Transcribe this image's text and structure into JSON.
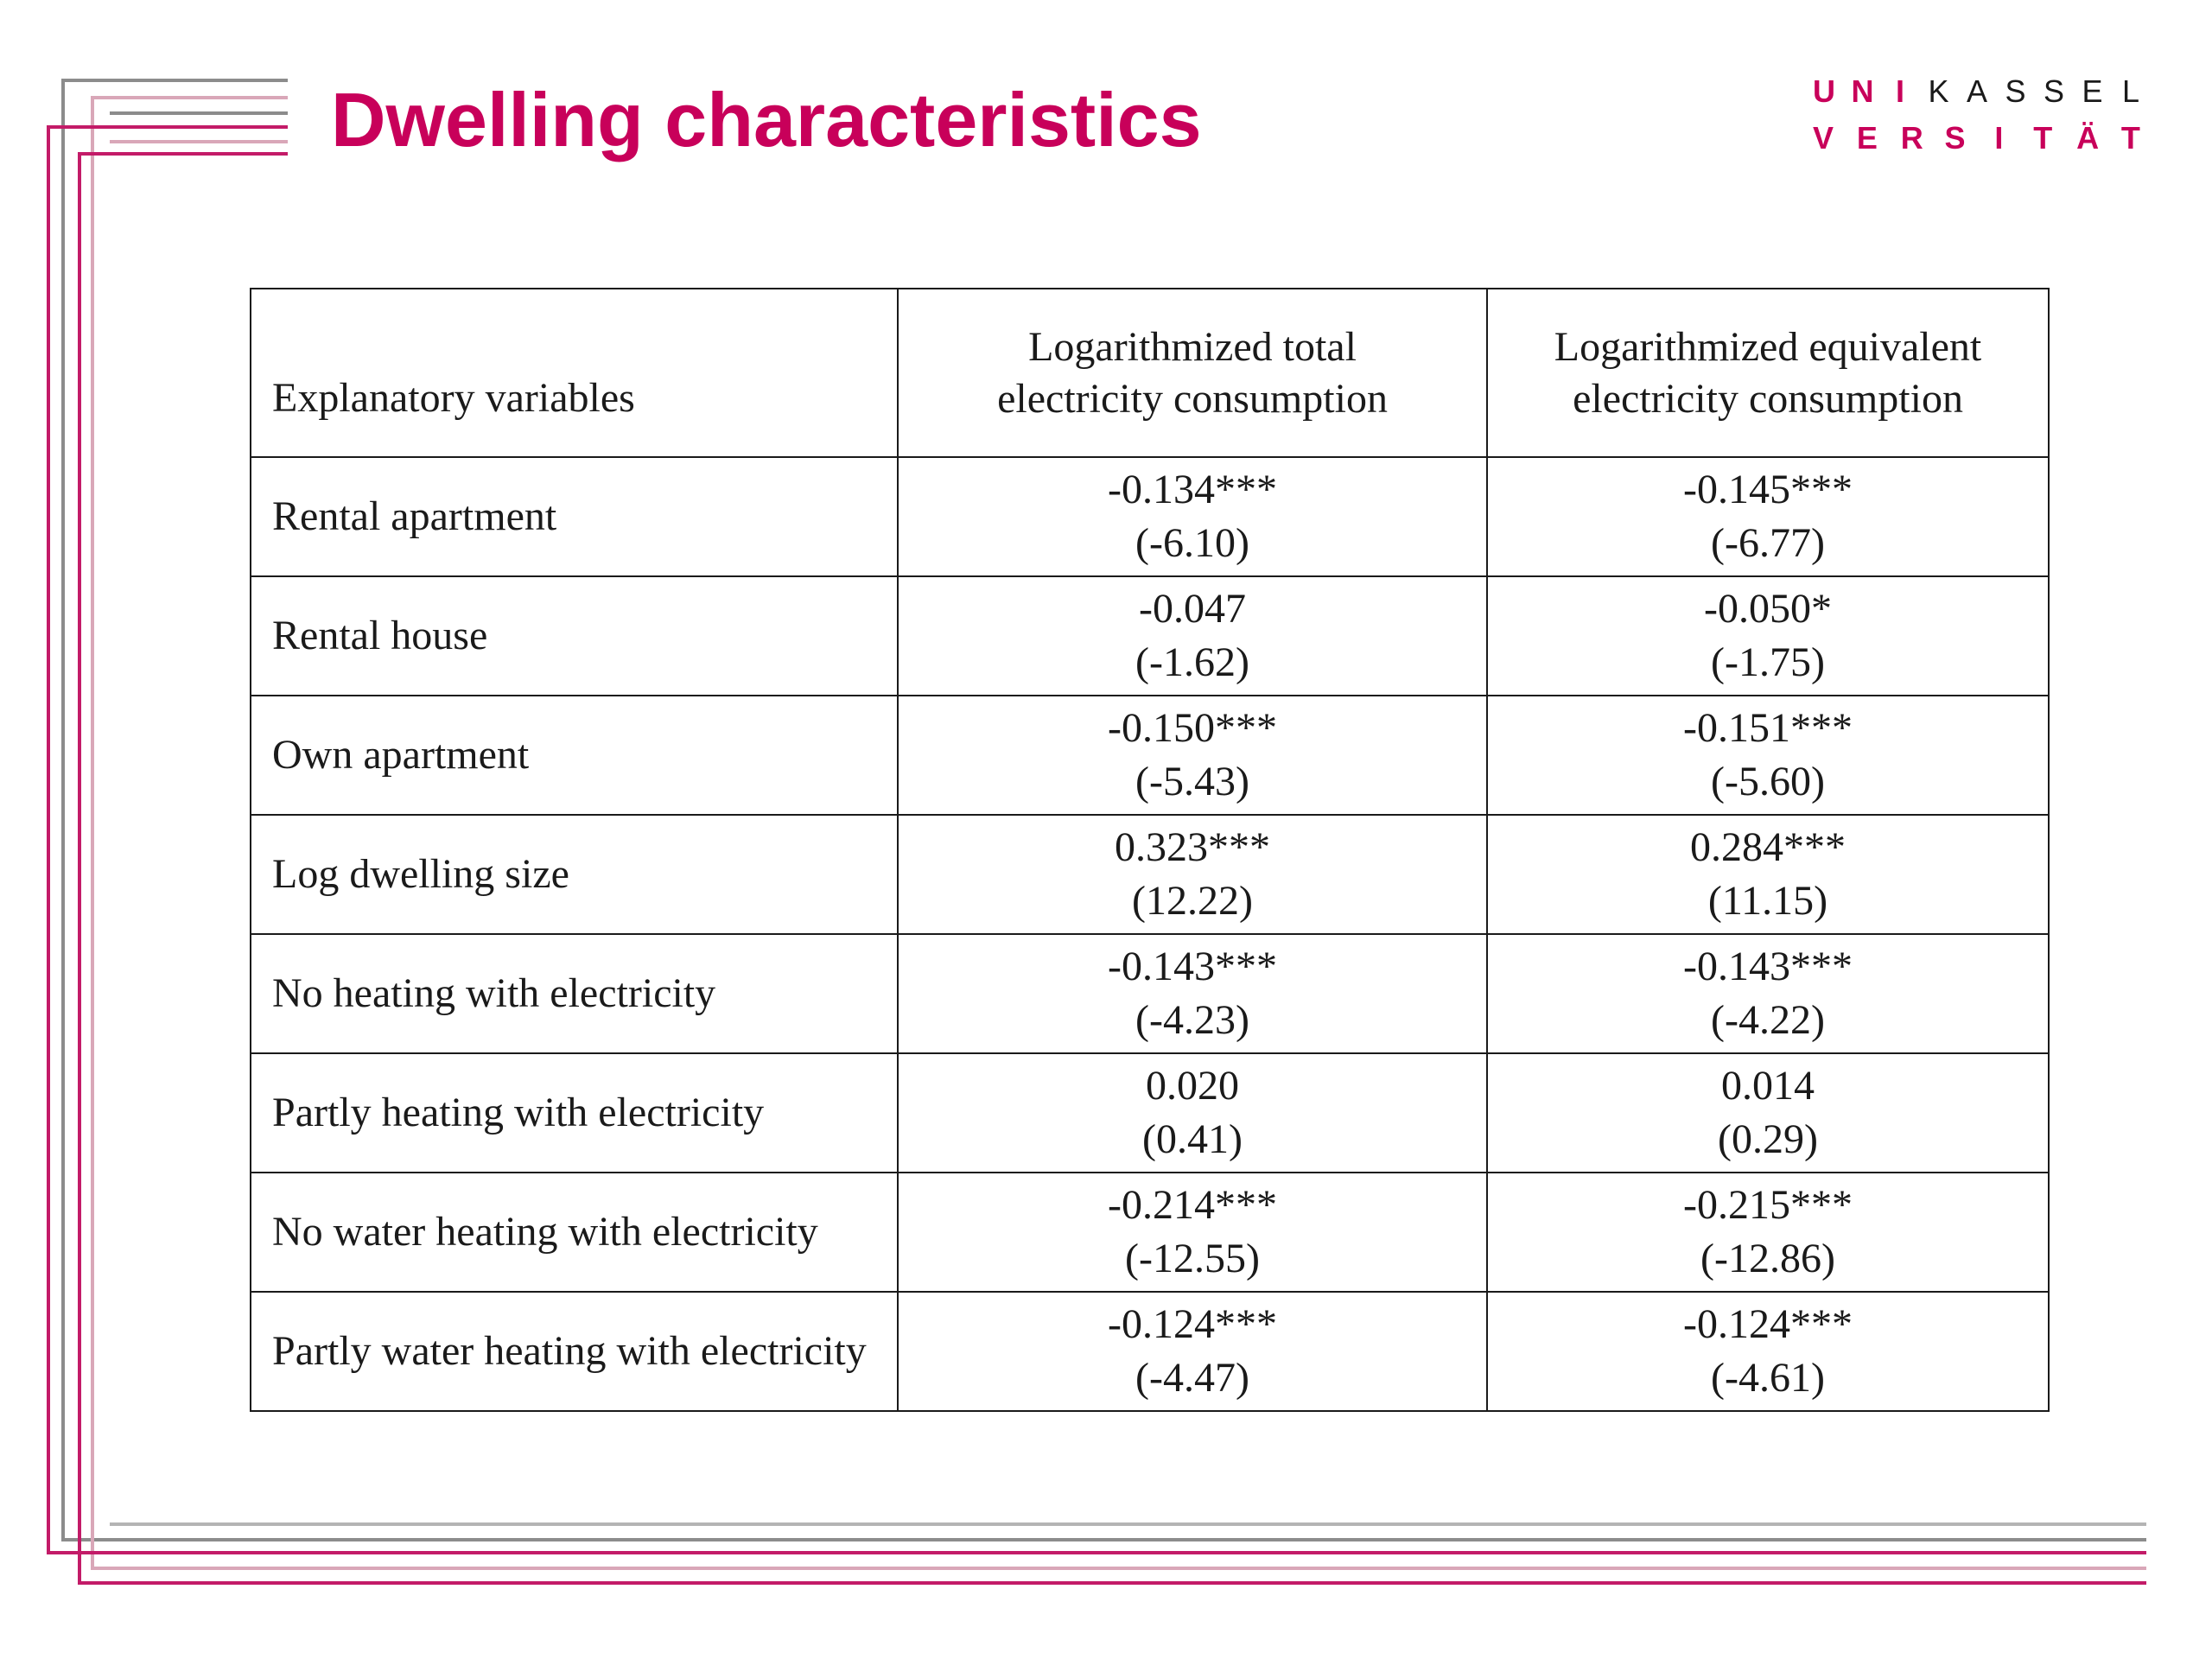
{
  "title": "Dwelling characteristics",
  "logo": {
    "line1": [
      "U",
      "N",
      "I",
      "K",
      "A",
      "S",
      "S",
      "E",
      "L"
    ],
    "line2": [
      "V",
      "E",
      "R",
      "S",
      "I",
      "T",
      "Ä",
      "T"
    ]
  },
  "colors": {
    "accent": "#c8005a",
    "frame_grey": "#8c8c8c",
    "frame_pink": "#d9a7b8",
    "text": "#1a1a1a"
  },
  "table": {
    "header": {
      "col0": "Explanatory variables",
      "col1": [
        "Logarithmized total",
        "electricity consumption"
      ],
      "col2": [
        "Logarithmized equivalent",
        "electricity consumption"
      ]
    },
    "rows": [
      {
        "label": "Rental apartment",
        "total": [
          "-0.134***",
          "(-6.10)"
        ],
        "equiv": [
          "-0.145***",
          "(-6.77)"
        ]
      },
      {
        "label": "Rental house",
        "total": [
          "-0.047",
          "(-1.62)"
        ],
        "equiv": [
          "-0.050*",
          "(-1.75)"
        ]
      },
      {
        "label": "Own apartment",
        "total": [
          "-0.150***",
          "(-5.43)"
        ],
        "equiv": [
          "-0.151***",
          "(-5.60)"
        ]
      },
      {
        "label": "Log dwelling size",
        "total": [
          "0.323***",
          "(12.22)"
        ],
        "equiv": [
          "0.284***",
          "(11.15)"
        ]
      },
      {
        "label": "No heating with electricity",
        "total": [
          "-0.143***",
          "(-4.23)"
        ],
        "equiv": [
          "-0.143***",
          "(-4.22)"
        ]
      },
      {
        "label": "Partly heating with electricity",
        "total": [
          "0.020",
          "(0.41)"
        ],
        "equiv": [
          "0.014",
          "(0.29)"
        ]
      },
      {
        "label": "No water heating with electricity",
        "total": [
          "-0.214***",
          "(-12.55)"
        ],
        "equiv": [
          "-0.215***",
          "(-12.86)"
        ]
      },
      {
        "label": "Partly water heating with electricity",
        "total": [
          "-0.124***",
          "(-4.47)"
        ],
        "equiv": [
          "-0.124***",
          "(-4.61)"
        ]
      }
    ]
  }
}
